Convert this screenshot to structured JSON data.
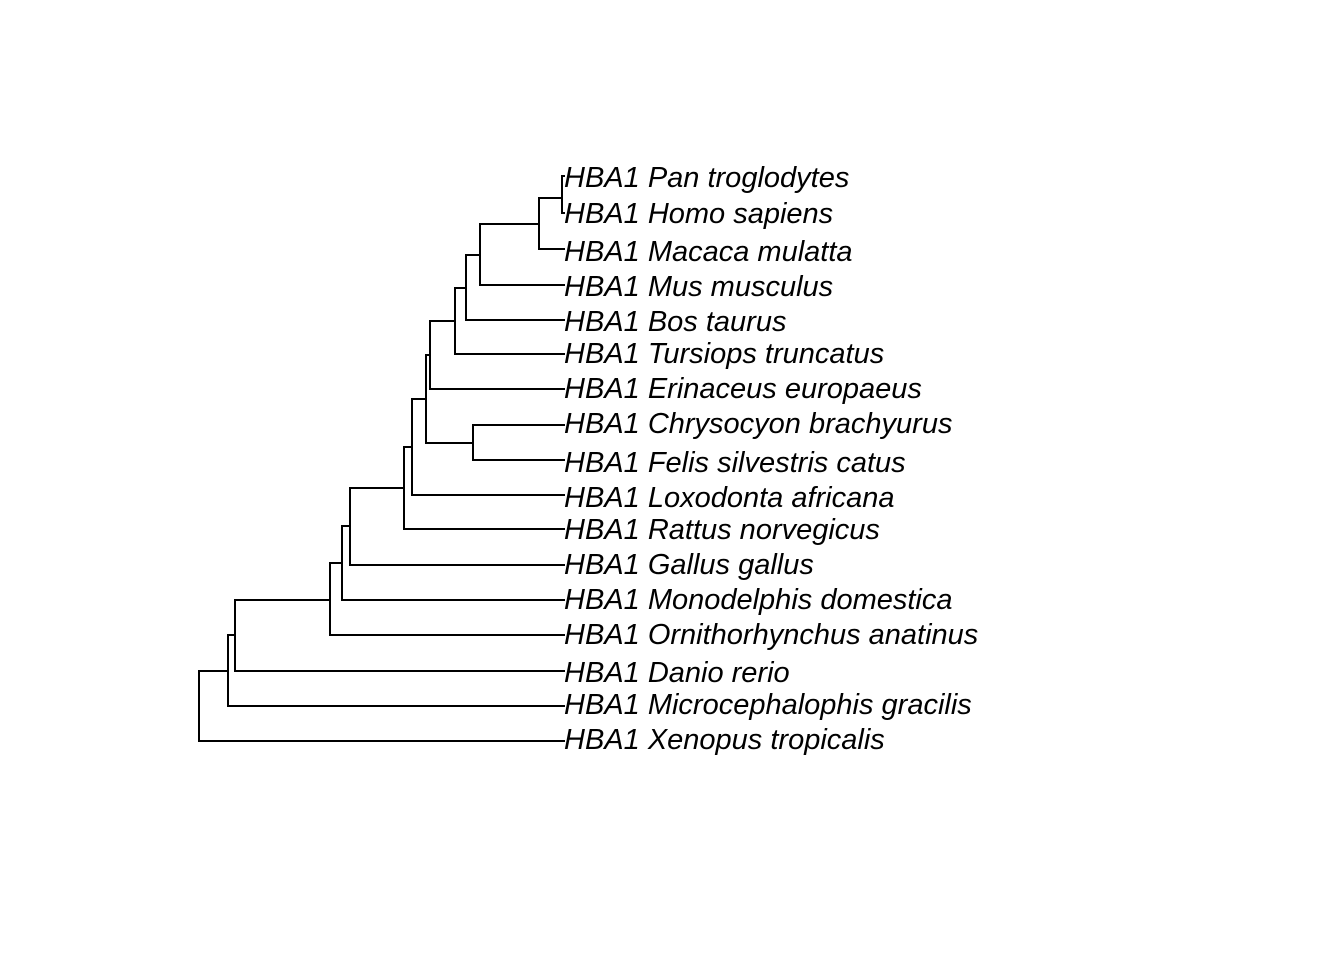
{
  "tree": {
    "type": "phylogram",
    "orientation": "right",
    "leaves": [
      "HBA1 Pan troglodytes",
      "HBA1 Homo sapiens",
      "HBA1 Macaca mulatta",
      "HBA1 Mus musculus",
      "HBA1 Bos taurus",
      "HBA1 Tursiops truncatus",
      "HBA1 Erinaceus europaeus",
      "HBA1 Chrysocyon brachyurus",
      "HBA1 Felis silvestris catus",
      "HBA1 Loxodonta africana",
      "HBA1 Rattus norvegicus",
      "HBA1 Gallus gallus",
      "HBA1 Monodelphis domestica",
      "HBA1 Ornithorhynchus anatinus",
      "HBA1 Danio rerio",
      "HBA1 Microcephalophis gracilis",
      "HBA1 Xenopus tropicalis"
    ]
  }
}
